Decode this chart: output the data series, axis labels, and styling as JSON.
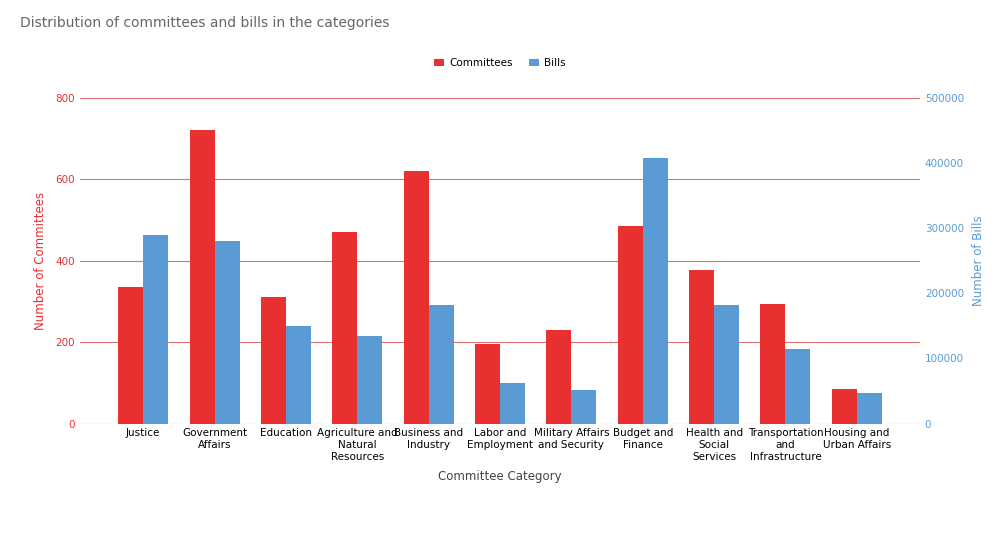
{
  "title": "Distribution of committees and bills in the categories",
  "categories": [
    "Justice",
    "Government\nAffairs",
    "Education",
    "Agriculture and\nNatural\nResources",
    "Business and\nIndustry",
    "Labor and\nEmployment",
    "Military Affairs\nand Security",
    "Budget and\nFinance",
    "Health and\nSocial\nServices",
    "Transportation\nand\nInfrastructure",
    "Housing and\nUrban Affairs"
  ],
  "committees": [
    335,
    720,
    310,
    470,
    620,
    195,
    230,
    485,
    378,
    293,
    85
  ],
  "bills": [
    290000,
    280000,
    150000,
    135000,
    182000,
    62000,
    52000,
    408000,
    182000,
    115000,
    47000
  ],
  "committee_color": "#e83030",
  "bills_color": "#5b9bd5",
  "left_ylabel": "Number of Committees",
  "right_ylabel": "Number of Bills",
  "xlabel": "Committee Category",
  "left_ylim": [
    0,
    800
  ],
  "right_ylim": [
    0,
    500000
  ],
  "left_yticks": [
    0,
    200,
    400,
    600,
    800
  ],
  "right_yticks": [
    0,
    100000,
    200000,
    300000,
    400000,
    500000
  ],
  "legend_labels": [
    "Committees",
    "Bills"
  ],
  "background_color": "#ffffff",
  "grid_color": "#e07070",
  "title_fontsize": 10,
  "label_fontsize": 8.5,
  "tick_fontsize": 7.5
}
